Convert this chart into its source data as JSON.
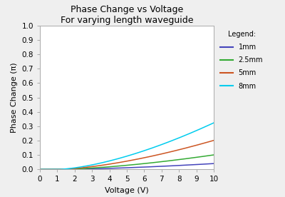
{
  "title_line1": "Phase Change vs Voltage",
  "title_line2": "For varying length waveguide",
  "xlabel": "Voltage (V)",
  "ylabel": "Phase Change (π)",
  "xlim": [
    0,
    10
  ],
  "ylim": [
    0,
    1.0
  ],
  "xticks": [
    0,
    1,
    2,
    3,
    4,
    5,
    6,
    7,
    8,
    9,
    10
  ],
  "yticks": [
    0.0,
    0.1,
    0.2,
    0.3,
    0.4,
    0.5,
    0.6,
    0.7,
    0.8,
    0.9,
    1.0
  ],
  "legend_title": "Legend:",
  "series": [
    {
      "label": "1mm",
      "color": "#4444bb",
      "scale": 0.00135,
      "vth": 1.0,
      "power": 1.55
    },
    {
      "label": "2.5mm",
      "color": "#33aa33",
      "scale": 0.00335,
      "vth": 1.0,
      "power": 1.55
    },
    {
      "label": "5mm",
      "color": "#cc5522",
      "scale": 0.0067,
      "vth": 1.0,
      "power": 1.55
    },
    {
      "label": "8mm",
      "color": "#00ccee",
      "scale": 0.01075,
      "vth": 1.0,
      "power": 1.55
    }
  ],
  "bg_color": "#efefef",
  "plot_bg": "#ffffff",
  "title_fontsize": 9,
  "label_fontsize": 8,
  "tick_fontsize": 7.5,
  "linewidth": 1.1
}
